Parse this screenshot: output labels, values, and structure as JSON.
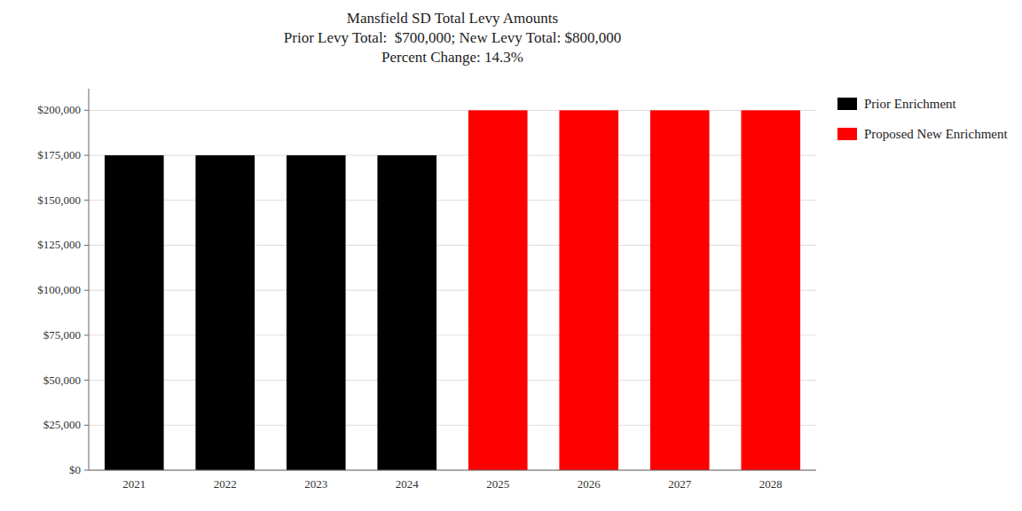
{
  "chart_data": {
    "type": "bar",
    "title": "Mansfield SD Total Levy Amounts\nPrior Levy Total:  $700,000; New Levy Total: $800,000\nPercent Change: 14.3%",
    "categories": [
      "2021",
      "2022",
      "2023",
      "2024",
      "2025",
      "2026",
      "2027",
      "2028"
    ],
    "series": [
      {
        "name": "Prior Enrichment",
        "color": "#000000",
        "values": [
          175000,
          175000,
          175000,
          175000,
          null,
          null,
          null,
          null
        ]
      },
      {
        "name": "Proposed New Enrichment",
        "color": "#ff0000",
        "values": [
          null,
          null,
          null,
          null,
          200000,
          200000,
          200000,
          200000
        ]
      }
    ],
    "ylim": [
      0,
      212000
    ],
    "yticks": [
      {
        "value": 0,
        "label": "$0"
      },
      {
        "value": 25000,
        "label": "$25,000"
      },
      {
        "value": 50000,
        "label": "$50,000"
      },
      {
        "value": 75000,
        "label": "$75,000"
      },
      {
        "value": 100000,
        "label": "$100,000"
      },
      {
        "value": 125000,
        "label": "$125,000"
      },
      {
        "value": 150000,
        "label": "$150,000"
      },
      {
        "value": 175000,
        "label": "$175,000"
      },
      {
        "value": 200000,
        "label": "$200,000"
      }
    ],
    "grid": true,
    "legend": "right"
  }
}
